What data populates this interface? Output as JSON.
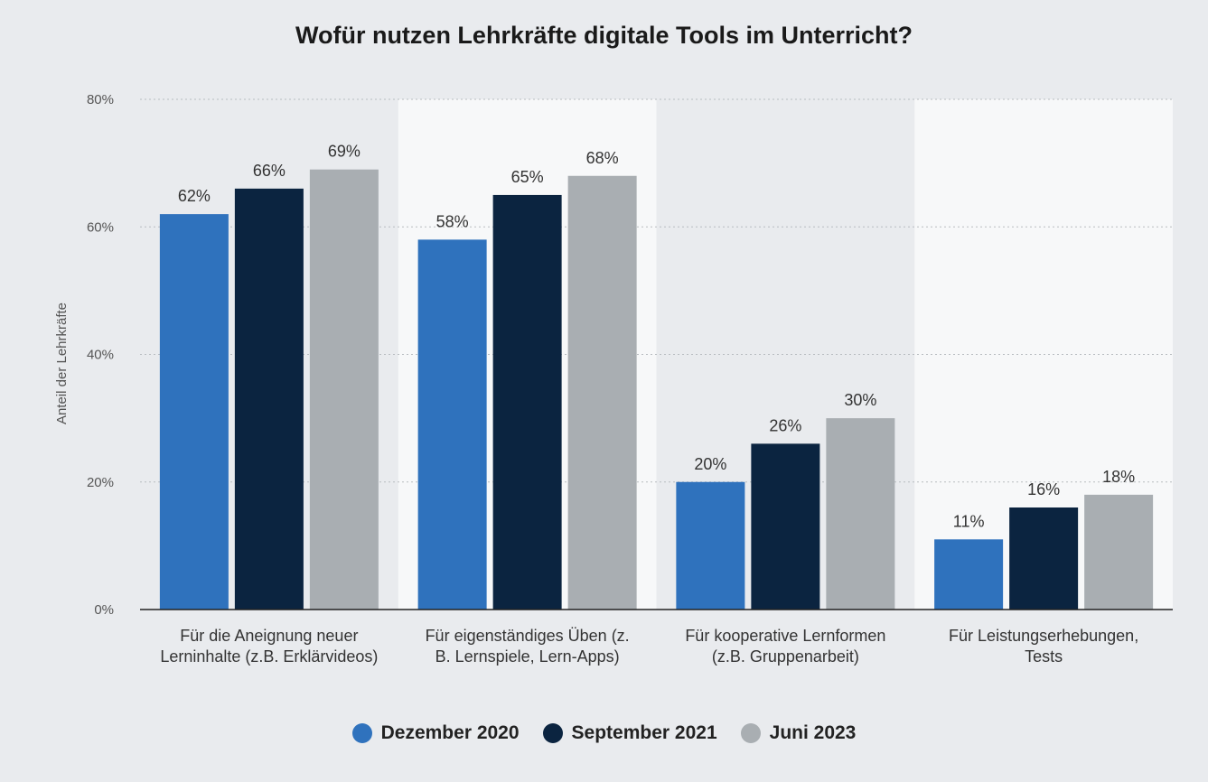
{
  "chart_data": {
    "type": "bar",
    "title": "Wofür nutzen Lehrkräfte digitale Tools im Unterricht?",
    "xlabel": "",
    "ylabel": "Anteil der Lehrkräfte",
    "ylim": [
      0,
      80
    ],
    "yticks": [
      0,
      20,
      40,
      60,
      80
    ],
    "ytick_labels": [
      "0%",
      "20%",
      "40%",
      "60%",
      "80%"
    ],
    "categories": [
      [
        "Für die Aneignung neuer",
        "Lerninhalte (z.B. Erklärvideos)"
      ],
      [
        "Für eigenständiges Üben (z.",
        "B. Lernspiele, Lern-Apps)"
      ],
      [
        "Für kooperative Lernformen",
        "(z.B. Gruppenarbeit)"
      ],
      [
        "Für Leistungserhebungen,",
        "Tests"
      ]
    ],
    "series": [
      {
        "name": "Dezember 2020",
        "color": "#2f72bd",
        "values": [
          62,
          58,
          20,
          11
        ],
        "labels": [
          "62%",
          "58%",
          "20%",
          "11%"
        ]
      },
      {
        "name": "September 2021",
        "color": "#0b2440",
        "values": [
          66,
          65,
          26,
          16
        ],
        "labels": [
          "66%",
          "65%",
          "26%",
          "16%"
        ]
      },
      {
        "name": "Juni 2023",
        "color": "#a9aeb2",
        "values": [
          69,
          68,
          30,
          18
        ],
        "labels": [
          "69%",
          "68%",
          "30%",
          "18%"
        ]
      }
    ],
    "grid": true,
    "legend": "bottom-center"
  }
}
